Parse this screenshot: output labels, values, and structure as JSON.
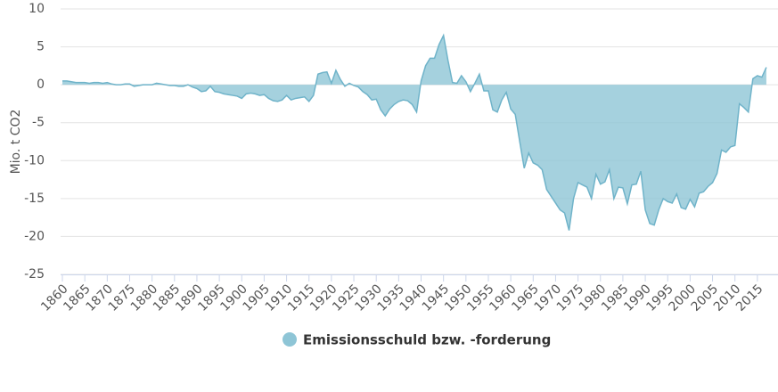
{
  "chart_data": {
    "type": "area",
    "y_label": "Mio. t CO2",
    "x": [
      1860,
      1861,
      1862,
      1863,
      1864,
      1865,
      1866,
      1867,
      1868,
      1869,
      1870,
      1871,
      1872,
      1873,
      1874,
      1875,
      1876,
      1877,
      1878,
      1879,
      1880,
      1881,
      1882,
      1883,
      1884,
      1885,
      1886,
      1887,
      1888,
      1889,
      1890,
      1891,
      1892,
      1893,
      1894,
      1895,
      1896,
      1897,
      1898,
      1899,
      1900,
      1901,
      1902,
      1903,
      1904,
      1905,
      1906,
      1907,
      1908,
      1909,
      1910,
      1911,
      1912,
      1913,
      1914,
      1915,
      1916,
      1917,
      1918,
      1919,
      1920,
      1921,
      1922,
      1923,
      1924,
      1925,
      1926,
      1927,
      1928,
      1929,
      1930,
      1931,
      1932,
      1933,
      1934,
      1935,
      1936,
      1937,
      1938,
      1939,
      1940,
      1941,
      1942,
      1943,
      1944,
      1945,
      1946,
      1947,
      1948,
      1949,
      1950,
      1951,
      1952,
      1953,
      1954,
      1955,
      1956,
      1957,
      1958,
      1959,
      1960,
      1961,
      1962,
      1963,
      1964,
      1965,
      1966,
      1967,
      1968,
      1969,
      1970,
      1971,
      1972,
      1973,
      1974,
      1975,
      1976,
      1977,
      1978,
      1979,
      1980,
      1981,
      1982,
      1983,
      1984,
      1985,
      1986,
      1987,
      1988,
      1989,
      1990,
      1991,
      1992,
      1993,
      1994,
      1995,
      1996,
      1997,
      1998,
      1999,
      2000,
      2001,
      2002,
      2003,
      2004,
      2005,
      2006,
      2007,
      2008,
      2009,
      2010,
      2011,
      2012,
      2013,
      2014,
      2015,
      2016,
      2017
    ],
    "series": [
      {
        "name": "Emissionsschuld bzw. -forderung",
        "color": "#8ec5d6",
        "values": [
          0.5,
          0.5,
          0.4,
          0.3,
          0.3,
          0.3,
          0.2,
          0.3,
          0.3,
          0.2,
          0.3,
          0.1,
          0,
          0,
          0.1,
          0.1,
          -0.2,
          -0.1,
          0,
          0,
          0,
          0.2,
          0.1,
          0,
          -0.1,
          -0.1,
          -0.2,
          -0.2,
          0,
          -0.3,
          -0.5,
          -0.9,
          -0.8,
          -0.2,
          -0.9,
          -1.0,
          -1.2,
          -1.3,
          -1.4,
          -1.5,
          -1.8,
          -1.2,
          -1.1,
          -1.2,
          -1.4,
          -1.3,
          -1.8,
          -2.1,
          -2.2,
          -2.0,
          -1.4,
          -2.0,
          -1.8,
          -1.7,
          -1.6,
          -2.2,
          -1.4,
          1.4,
          1.6,
          1.7,
          0.2,
          1.9,
          0.7,
          -0.2,
          0.2,
          -0.1,
          -0.3,
          -0.9,
          -1.3,
          -2.0,
          -1.9,
          -3.3,
          -4.1,
          -3.2,
          -2.6,
          -2.2,
          -2.0,
          -2.1,
          -2.6,
          -3.6,
          0.5,
          2.5,
          3.5,
          3.5,
          5.3,
          6.5,
          3.2,
          0.3,
          0.2,
          1.2,
          0.4,
          -0.9,
          0.2,
          1.4,
          -0.8,
          -0.8,
          -3.3,
          -3.6,
          -2.0,
          -1.0,
          -3.2,
          -3.9,
          -7.5,
          -11.0,
          -9.0,
          -10.3,
          -10.6,
          -11.2,
          -13.8,
          -14.7,
          -15.6,
          -16.5,
          -16.9,
          -19.2,
          -15.0,
          -12.9,
          -13.2,
          -13.5,
          -15.0,
          -11.8,
          -13.1,
          -12.8,
          -11.2,
          -15.0,
          -13.5,
          -13.6,
          -15.7,
          -13.2,
          -13.1,
          -11.4,
          -16.5,
          -18.3,
          -18.5,
          -16.5,
          -15.0,
          -15.4,
          -15.6,
          -14.4,
          -16.2,
          -16.4,
          -15.1,
          -16.1,
          -14.3,
          -14.1,
          -13.4,
          -12.9,
          -11.7,
          -8.6,
          -8.9,
          -8.2,
          -8.0,
          -2.5,
          -3.0,
          -3.6,
          0.8,
          1.2,
          1.0,
          2.3
        ]
      }
    ],
    "xlim": [
      1859.6,
      2019.6
    ],
    "xticks": [
      1860,
      1865,
      1870,
      1875,
      1880,
      1885,
      1890,
      1895,
      1900,
      1905,
      1910,
      1915,
      1920,
      1925,
      1930,
      1935,
      1940,
      1945,
      1950,
      1955,
      1960,
      1965,
      1970,
      1975,
      1980,
      1985,
      1990,
      1995,
      2000,
      2005,
      2010,
      2015
    ],
    "ylim": [
      -25,
      10
    ],
    "yticks": [
      -25,
      -20,
      -15,
      -10,
      -5,
      0,
      5,
      10
    ],
    "grid": true,
    "legend": "bottom"
  }
}
